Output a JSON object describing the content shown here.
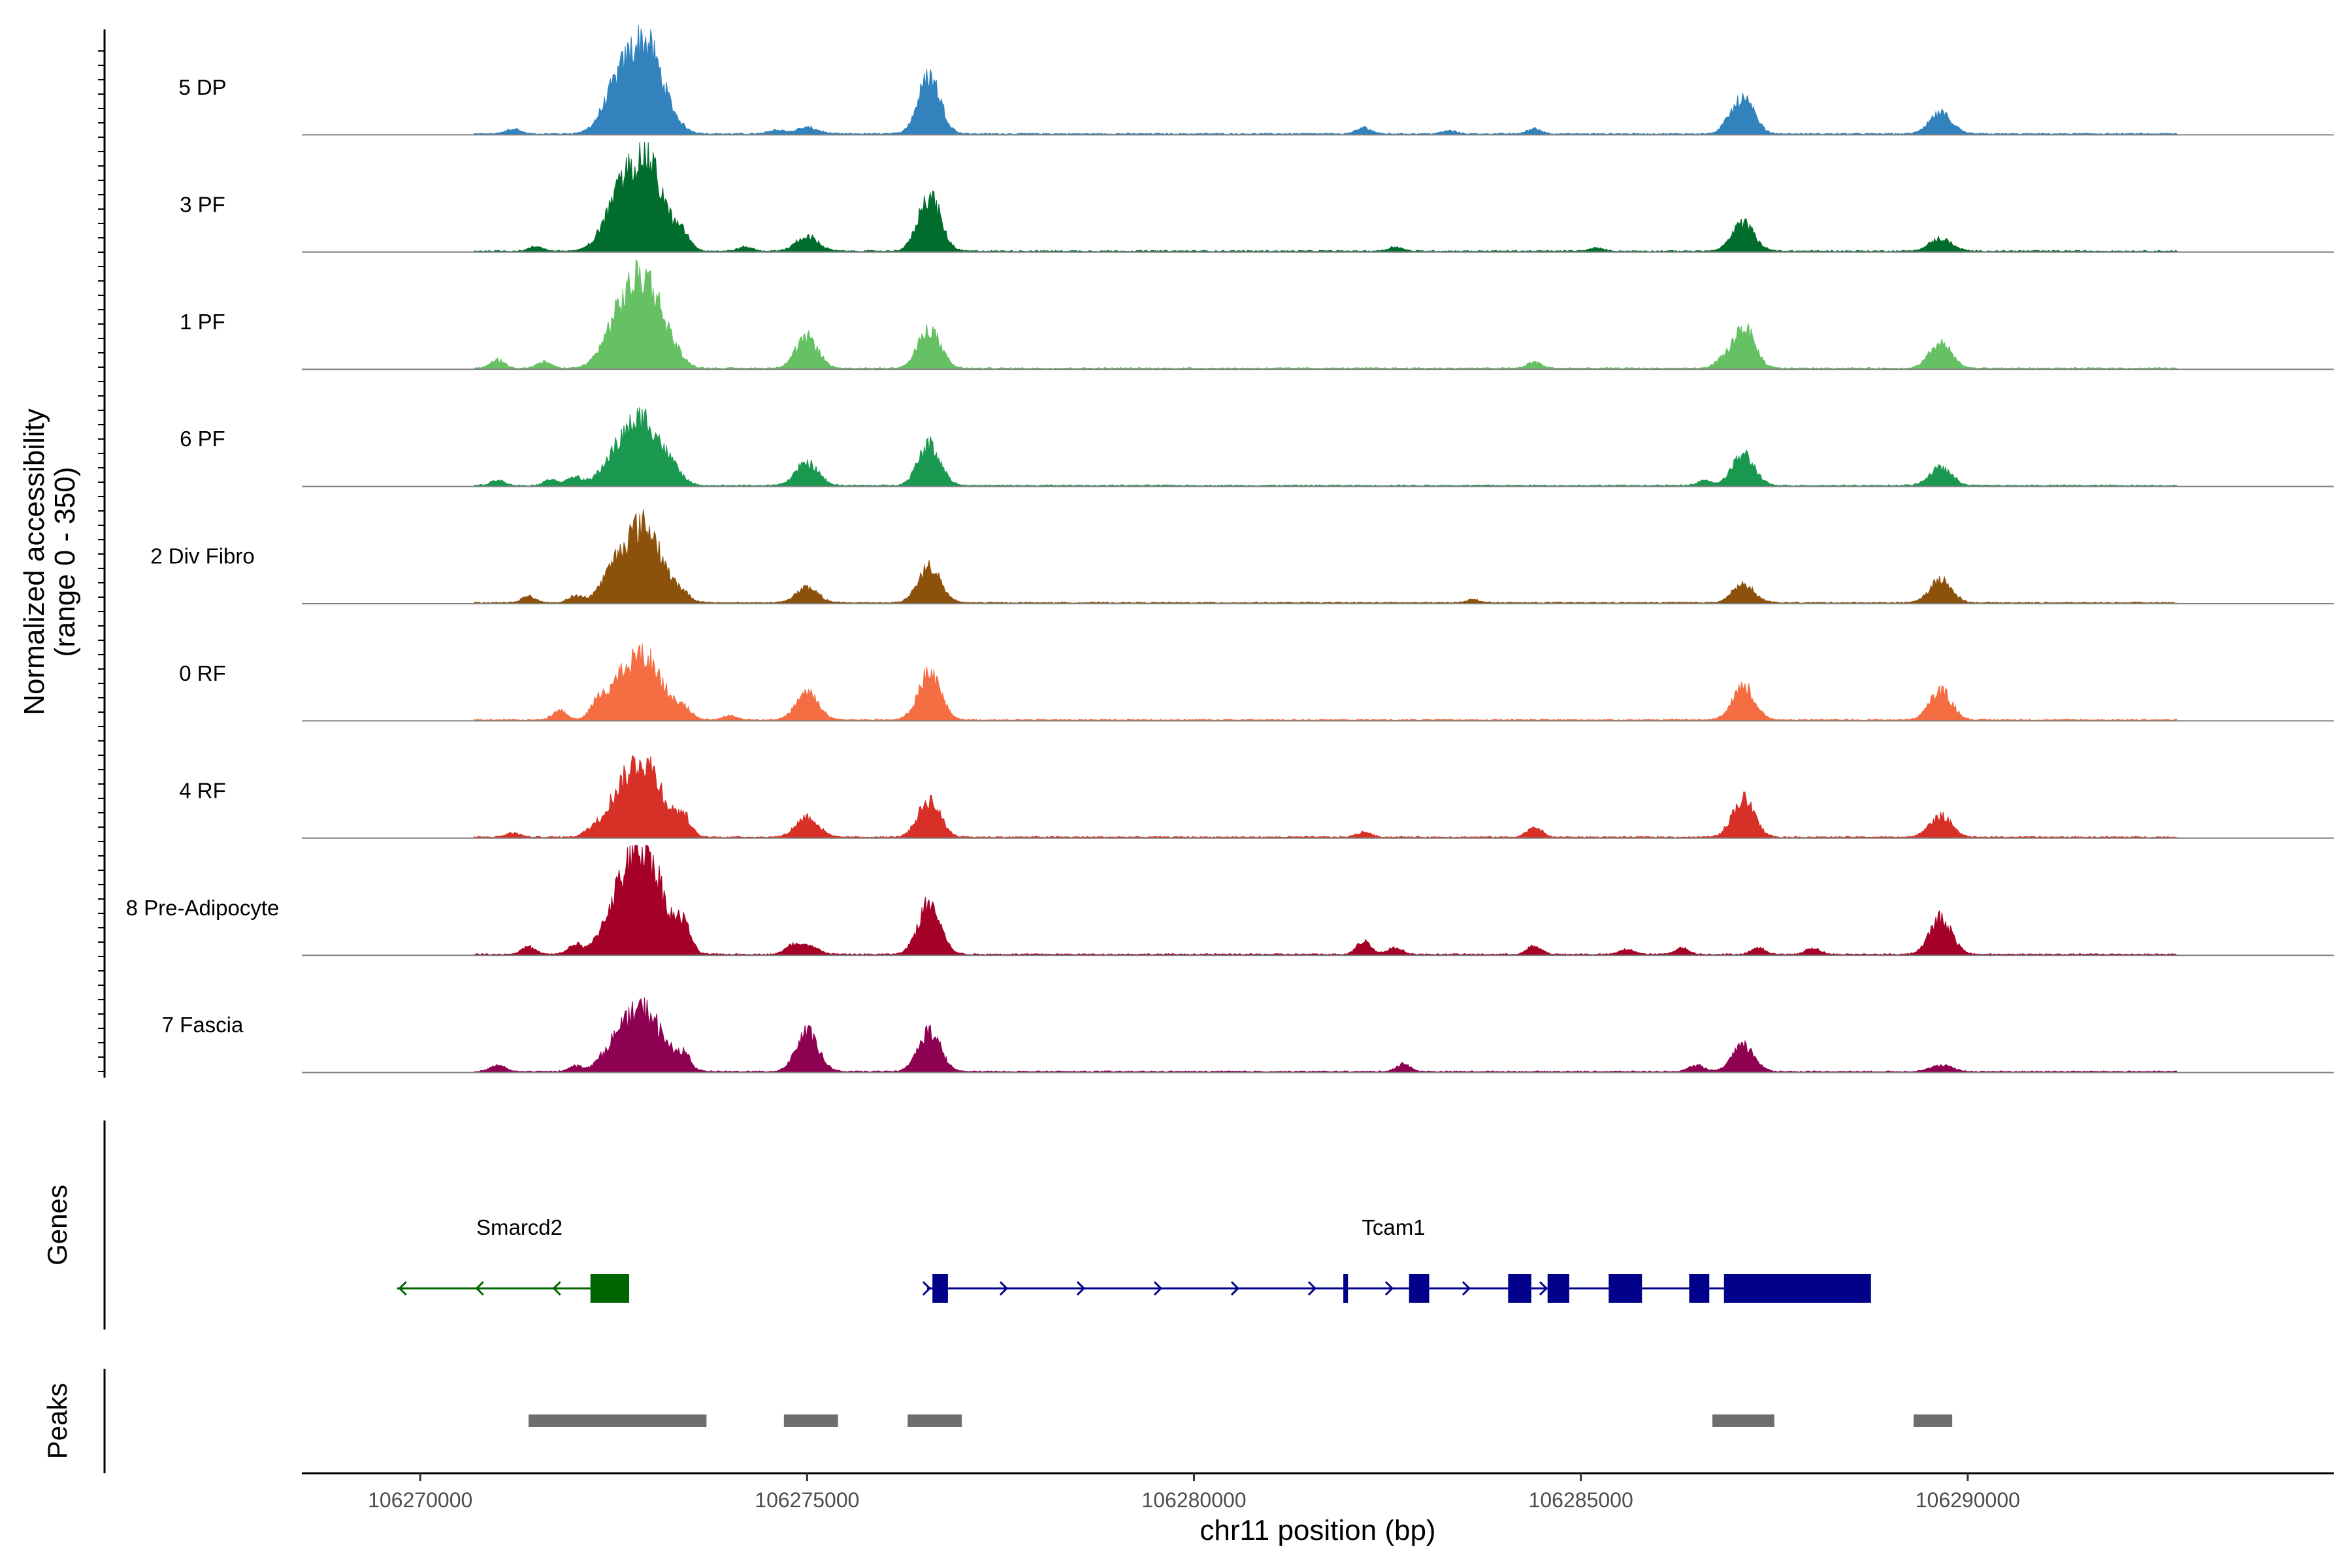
{
  "chart_data": {
    "type": "area",
    "title": "",
    "ylabel_line1": "Normalized accessibility",
    "ylabel_line2": "(range 0 - 350)",
    "y_range": [
      0,
      350
    ],
    "xlabel": "chr11 position (bp)",
    "x_range": [
      106268470,
      106294730
    ],
    "x_ticks": [
      106270000,
      106275000,
      106280000,
      106285000,
      106290000
    ],
    "x_tick_labels": [
      "106270000",
      "106275000",
      "106280000",
      "106285000",
      "106290000"
    ],
    "peak_centers": [
      106272900,
      106275000,
      106276580,
      106287100,
      106289650
    ],
    "tracks": [
      {
        "name": "5 DP",
        "color": "#3182BD",
        "peak_heights": [
          0.87,
          0.06,
          0.56,
          0.33,
          0.2
        ],
        "minor": [
          [
            106271200,
            0.05
          ],
          [
            106274600,
            0.04
          ],
          [
            106282200,
            0.06
          ],
          [
            106283300,
            0.03
          ],
          [
            106284400,
            0.05
          ],
          [
            106286900,
            0.04
          ]
        ]
      },
      {
        "name": "3 PF",
        "color": "#006D2C",
        "peak_heights": [
          0.9,
          0.14,
          0.54,
          0.27,
          0.12
        ],
        "minor": [
          [
            106271500,
            0.04
          ],
          [
            106273400,
            0.12
          ],
          [
            106274200,
            0.04
          ],
          [
            106282600,
            0.04
          ],
          [
            106285200,
            0.03
          ]
        ]
      },
      {
        "name": "1 PF",
        "color": "#66C164",
        "peak_heights": [
          0.87,
          0.3,
          0.38,
          0.4,
          0.24
        ],
        "minor": [
          [
            106271000,
            0.08
          ],
          [
            106271600,
            0.06
          ],
          [
            106273300,
            0.05
          ],
          [
            106284400,
            0.06
          ],
          [
            106286800,
            0.05
          ]
        ]
      },
      {
        "name": "6 PF",
        "color": "#1A9850",
        "peak_heights": [
          0.62,
          0.22,
          0.4,
          0.3,
          0.17
        ],
        "minor": [
          [
            106271000,
            0.05
          ],
          [
            106271700,
            0.06
          ],
          [
            106272000,
            0.08
          ],
          [
            106273300,
            0.06
          ],
          [
            106286600,
            0.05
          ]
        ]
      },
      {
        "name": "2 Div Fibro",
        "color": "#8C510A",
        "peak_heights": [
          0.72,
          0.14,
          0.36,
          0.17,
          0.22
        ],
        "minor": [
          [
            106271400,
            0.06
          ],
          [
            106272000,
            0.06
          ],
          [
            106273400,
            0.05
          ],
          [
            106283600,
            0.03
          ]
        ]
      },
      {
        "name": "0 RF",
        "color": "#F46D43",
        "peak_heights": [
          0.6,
          0.28,
          0.46,
          0.33,
          0.28
        ],
        "minor": [
          [
            106271800,
            0.09
          ],
          [
            106272300,
            0.11
          ],
          [
            106273400,
            0.1
          ],
          [
            106270500,
            0.04
          ],
          [
            106274000,
            0.04
          ]
        ]
      },
      {
        "name": "4 RF",
        "color": "#D73027",
        "peak_heights": [
          0.71,
          0.2,
          0.36,
          0.37,
          0.2
        ],
        "minor": [
          [
            106273400,
            0.17
          ],
          [
            106271200,
            0.04
          ],
          [
            106272200,
            0.04
          ],
          [
            106284400,
            0.1
          ],
          [
            106282200,
            0.05
          ]
        ]
      },
      {
        "name": "8 Pre-Adipocyte",
        "color": "#A50026",
        "peak_heights": [
          1.0,
          0.08,
          0.49,
          0.0,
          0.35
        ],
        "minor": [
          [
            106273400,
            0.25
          ],
          [
            106274800,
            0.06
          ],
          [
            106270300,
            0.06
          ],
          [
            106271400,
            0.07
          ],
          [
            106272000,
            0.09
          ],
          [
            106282200,
            0.13
          ],
          [
            106282600,
            0.07
          ],
          [
            106284400,
            0.08
          ],
          [
            106285600,
            0.05
          ],
          [
            106286300,
            0.06
          ],
          [
            106287300,
            0.06
          ],
          [
            106288000,
            0.06
          ]
        ]
      },
      {
        "name": "7 Fascia",
        "color": "#8E0152",
        "peak_heights": [
          0.58,
          0.38,
          0.39,
          0.25,
          0.06
        ],
        "minor": [
          [
            106273400,
            0.14
          ],
          [
            106271000,
            0.06
          ],
          [
            106272000,
            0.05
          ],
          [
            106282700,
            0.07
          ],
          [
            106286500,
            0.06
          ]
        ]
      }
    ],
    "genes_label": "Genes",
    "genes": [
      {
        "name": "Smarcd2",
        "strand": "-",
        "start": 106269700,
        "end": 106272700,
        "color": "#006400",
        "exons": [
          [
            106272200,
            106272700
          ]
        ]
      },
      {
        "name": "Tcam1",
        "strand": "+",
        "start": 106276550,
        "end": 106288750,
        "color": "#00008B",
        "exons": [
          [
            106276620,
            106276820
          ],
          [
            106281930,
            106281990
          ],
          [
            106282780,
            106283040
          ],
          [
            106284060,
            106284360
          ],
          [
            106284570,
            106284850
          ],
          [
            106285360,
            106285790
          ],
          [
            106286400,
            106286660
          ],
          [
            106286850,
            106288750
          ]
        ]
      }
    ],
    "peaks_label": "Peaks",
    "peaks": [
      [
        106271400,
        106273700
      ],
      [
        106274700,
        106275400
      ],
      [
        106276300,
        106277000
      ],
      [
        106286700,
        106287500
      ],
      [
        106289300,
        106289800
      ]
    ]
  }
}
